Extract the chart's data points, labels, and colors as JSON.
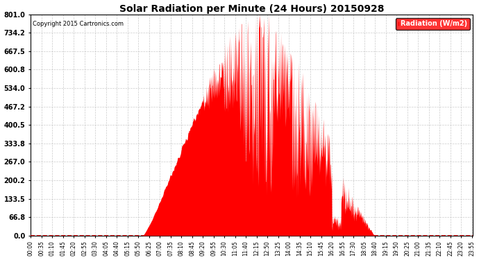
{
  "title": "Solar Radiation per Minute (24 Hours) 20150928",
  "copyright": "Copyright 2015 Cartronics.com",
  "legend_label": "Radiation (W/m2)",
  "ylabel_ticks": [
    0.0,
    66.8,
    133.5,
    200.2,
    267.0,
    333.8,
    400.5,
    467.2,
    534.0,
    600.8,
    667.5,
    734.2,
    801.0
  ],
  "fill_color": "#FF0000",
  "bg_color": "#FFFFFF",
  "grid_color": "#BEBEBE",
  "title_color": "#000000",
  "copyright_color": "#000000",
  "legend_bg": "#FF0000",
  "legend_text_color": "#FFFFFF",
  "dashed_zero_color": "#FF0000",
  "ylim": [
    0.0,
    801.0
  ],
  "sunrise_minute": 365,
  "sunset_minute": 1120,
  "solar_noon": 742,
  "max_radiation": 801.0
}
